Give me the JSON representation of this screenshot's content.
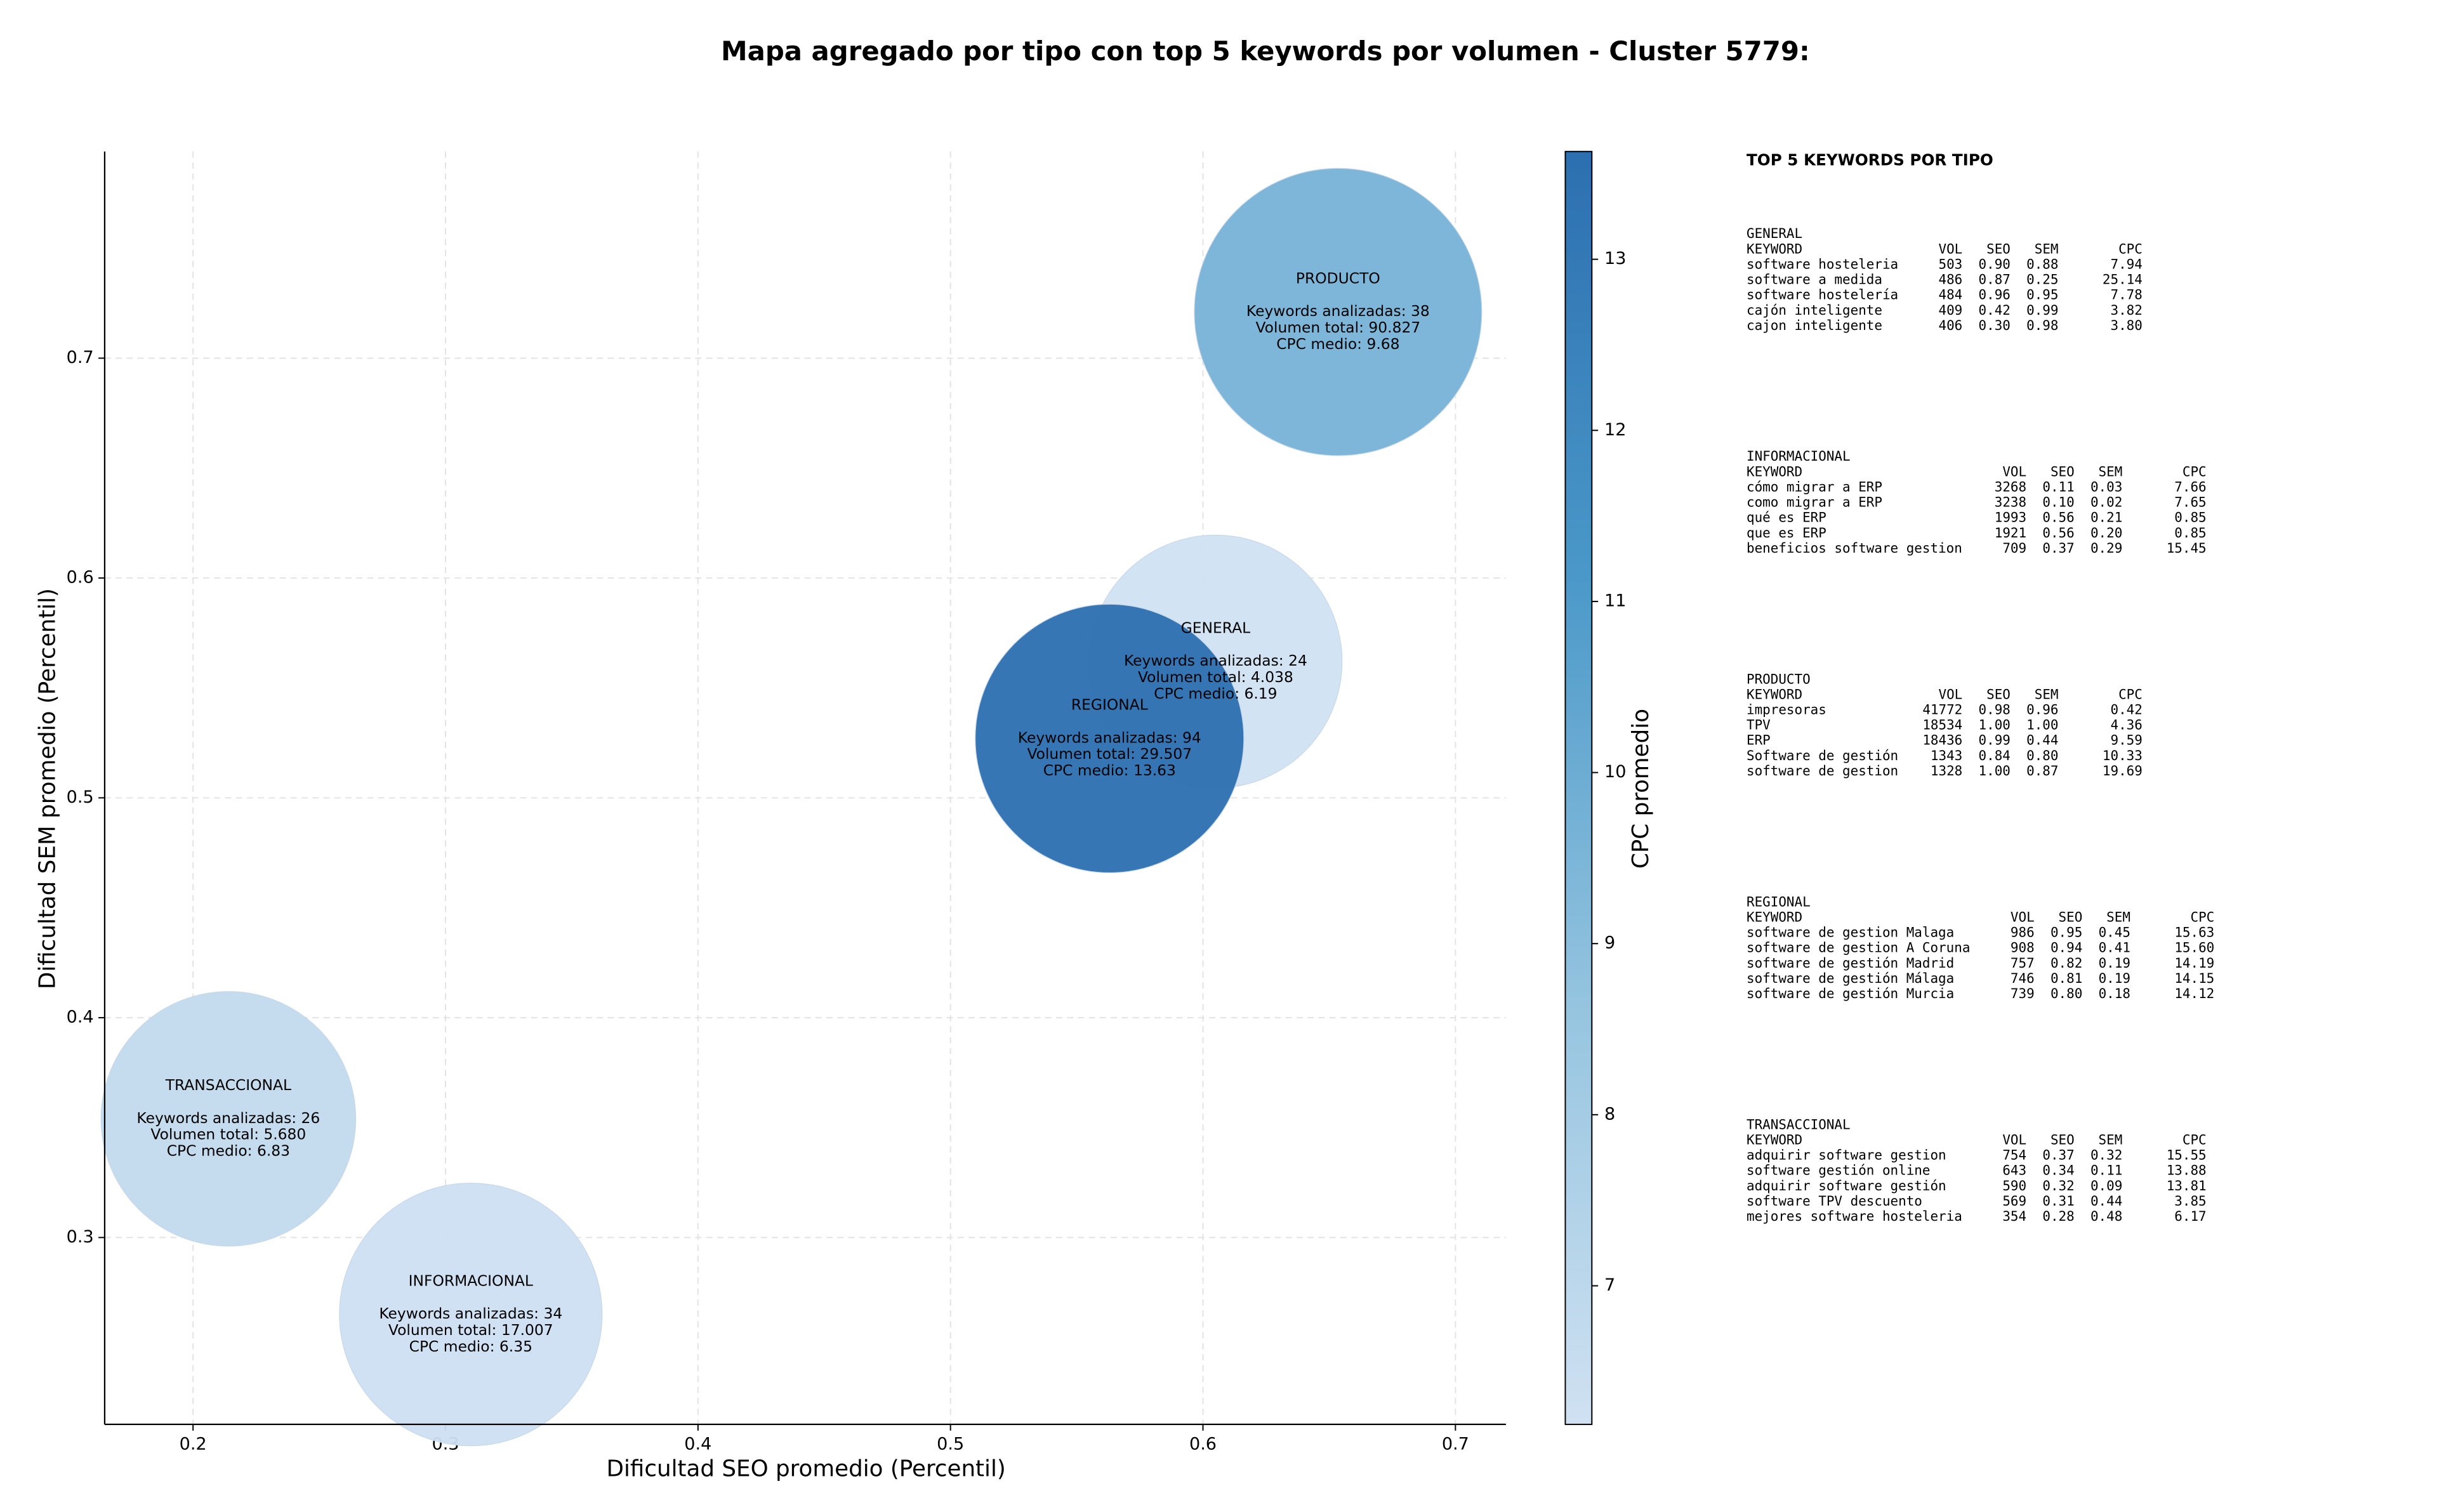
{
  "chart_data": {
    "type": "scatter",
    "title": "Mapa agregado por tipo con top 5 keywords por volumen - Cluster 5779:",
    "x_label": "Dificultad SEO promedio (Percentil)",
    "y_label": "Dificultad SEM promedio (Percentil)",
    "xlim": [
      0.165,
      0.72
    ],
    "ylim": [
      0.215,
      0.794
    ],
    "xticks": [
      0.2,
      0.3,
      0.4,
      0.5,
      0.6,
      0.7
    ],
    "yticks": [
      0.3,
      0.4,
      0.5,
      0.6,
      0.7
    ],
    "grid": true,
    "colorbar": {
      "label": "CPC promedio",
      "lim": [
        6.19,
        13.63
      ],
      "ticks": [
        7,
        8,
        9,
        10,
        11,
        12,
        13
      ],
      "colormap": [
        "#d0e1f2",
        "#94c4df",
        "#4a98c9",
        "#2c6fb0"
      ]
    },
    "points": [
      {
        "name": "GENERAL",
        "x": 0.605,
        "y": 0.562,
        "keywords": 24,
        "keywords_label": "Keywords analizadas: 24",
        "volume": 4038,
        "volume_label": "Volumen total: 4.038",
        "cpc": 6.19,
        "cpc_label": "CPC medio: 6.19"
      },
      {
        "name": "INFORMACIONAL",
        "x": 0.31,
        "y": 0.265,
        "keywords": 34,
        "keywords_label": "Keywords analizadas: 34",
        "volume": 17007,
        "volume_label": "Volumen total: 17.007",
        "cpc": 6.35,
        "cpc_label": "CPC medio: 6.35"
      },
      {
        "name": "PRODUCTO",
        "x": 0.6535,
        "y": 0.721,
        "keywords": 38,
        "keywords_label": "Keywords analizadas: 38",
        "volume": 90827,
        "volume_label": "Volumen total: 90.827",
        "cpc": 9.68,
        "cpc_label": "CPC medio: 9.68"
      },
      {
        "name": "REGIONAL",
        "x": 0.563,
        "y": 0.527,
        "keywords": 94,
        "keywords_label": "Keywords analizadas: 94",
        "volume": 29507,
        "volume_label": "Volumen total: 29.507",
        "cpc": 13.63,
        "cpc_label": "CPC medio: 13.63"
      },
      {
        "name": "TRANSACCIONAL",
        "x": 0.214,
        "y": 0.354,
        "keywords": 26,
        "keywords_label": "Keywords analizadas: 26",
        "volume": 5680,
        "volume_label": "Volumen total: 5.680",
        "cpc": 6.83,
        "cpc_label": "CPC medio: 6.83"
      }
    ]
  },
  "keyword_panel": {
    "title": "TOP 5 KEYWORDS POR TIPO",
    "header": [
      "KEYWORD",
      "VOL",
      "SEO",
      "SEM",
      "CPC"
    ],
    "groups": [
      {
        "title": "GENERAL",
        "rows": [
          [
            "software hosteleria",
            "503",
            "0.90",
            "0.88",
            "7.94"
          ],
          [
            "software a medida",
            "486",
            "0.87",
            "0.25",
            "25.14"
          ],
          [
            "software hostelería",
            "484",
            "0.96",
            "0.95",
            "7.78"
          ],
          [
            "cajón inteligente",
            "409",
            "0.42",
            "0.99",
            "3.82"
          ],
          [
            "cajon inteligente",
            "406",
            "0.30",
            "0.98",
            "3.80"
          ]
        ]
      },
      {
        "title": "INFORMACIONAL",
        "rows": [
          [
            "cómo migrar a ERP",
            "3268",
            "0.11",
            "0.03",
            "7.66"
          ],
          [
            "como migrar a ERP",
            "3238",
            "0.10",
            "0.02",
            "7.65"
          ],
          [
            "qué es ERP",
            "1993",
            "0.56",
            "0.21",
            "0.85"
          ],
          [
            "que es ERP",
            "1921",
            "0.56",
            "0.20",
            "0.85"
          ],
          [
            "beneficios software gestion",
            "709",
            "0.37",
            "0.29",
            "15.45"
          ]
        ]
      },
      {
        "title": "PRODUCTO",
        "rows": [
          [
            "impresoras",
            "41772",
            "0.98",
            "0.96",
            "0.42"
          ],
          [
            "TPV",
            "18534",
            "1.00",
            "1.00",
            "4.36"
          ],
          [
            "ERP",
            "18436",
            "0.99",
            "0.44",
            "9.59"
          ],
          [
            "Software de gestión",
            "1343",
            "0.84",
            "0.80",
            "10.33"
          ],
          [
            "software de gestion",
            "1328",
            "1.00",
            "0.87",
            "19.69"
          ]
        ]
      },
      {
        "title": "REGIONAL",
        "rows": [
          [
            "software de gestion Malaga",
            "986",
            "0.95",
            "0.45",
            "15.63"
          ],
          [
            "software de gestion A Coruna",
            "908",
            "0.94",
            "0.41",
            "15.60"
          ],
          [
            "software de gestión Madrid",
            "757",
            "0.82",
            "0.19",
            "14.19"
          ],
          [
            "software de gestión Málaga",
            "746",
            "0.81",
            "0.19",
            "14.15"
          ],
          [
            "software de gestión Murcia",
            "739",
            "0.80",
            "0.18",
            "14.12"
          ]
        ]
      },
      {
        "title": "TRANSACCIONAL",
        "rows": [
          [
            "adquirir software gestion",
            "754",
            "0.37",
            "0.32",
            "15.55"
          ],
          [
            "software gestión online",
            "643",
            "0.34",
            "0.11",
            "13.88"
          ],
          [
            "adquirir software gestión",
            "590",
            "0.32",
            "0.09",
            "13.81"
          ],
          [
            "software TPV descuento",
            "569",
            "0.31",
            "0.44",
            "3.85"
          ],
          [
            "mejores software hosteleria",
            "354",
            "0.28",
            "0.48",
            "6.17"
          ]
        ]
      }
    ]
  }
}
